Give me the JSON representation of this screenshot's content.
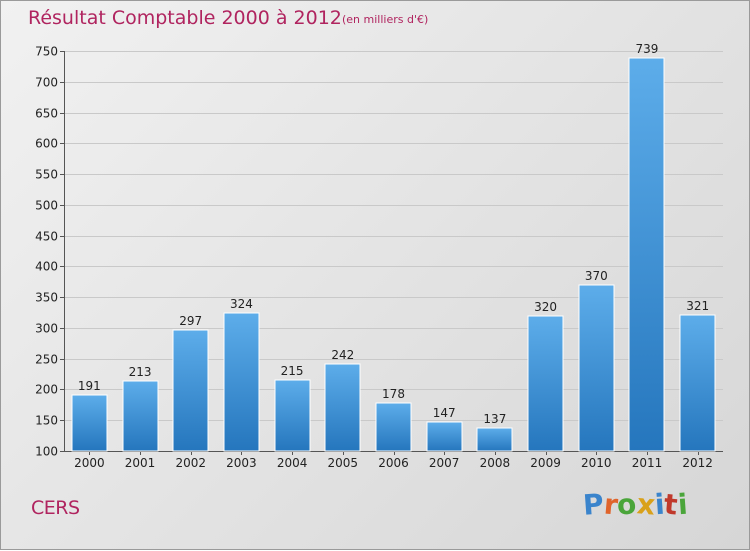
{
  "chart_data": {
    "type": "bar",
    "title": "Résultat Comptable 2000 à 2012",
    "subtitle": "(en milliers d'€)",
    "categories": [
      "2000",
      "2001",
      "2002",
      "2003",
      "2004",
      "2005",
      "2006",
      "2007",
      "2008",
      "2009",
      "2010",
      "2011",
      "2012"
    ],
    "values": [
      191,
      213,
      297,
      324,
      215,
      242,
      178,
      147,
      137,
      320,
      370,
      739,
      321
    ],
    "ylim": [
      100,
      750
    ],
    "yticks": [
      100,
      150,
      200,
      250,
      300,
      350,
      400,
      450,
      500,
      550,
      600,
      650,
      700,
      750
    ],
    "xlabel": "",
    "ylabel": "",
    "grid": true,
    "bar_color": "#3d93d9"
  },
  "footer": {
    "commune": "CERS",
    "logo": "Proxiti",
    "logo_letters": [
      {
        "ch": "P",
        "color": "#3a84cc"
      },
      {
        "ch": "r",
        "color": "#e0642b"
      },
      {
        "ch": "o",
        "color": "#4aa53a"
      },
      {
        "ch": "x",
        "color": "#d9a11a"
      },
      {
        "ch": "i",
        "color": "#3a84cc"
      },
      {
        "ch": "t",
        "color": "#c0392b"
      },
      {
        "ch": "i",
        "color": "#4aa53a"
      }
    ]
  }
}
